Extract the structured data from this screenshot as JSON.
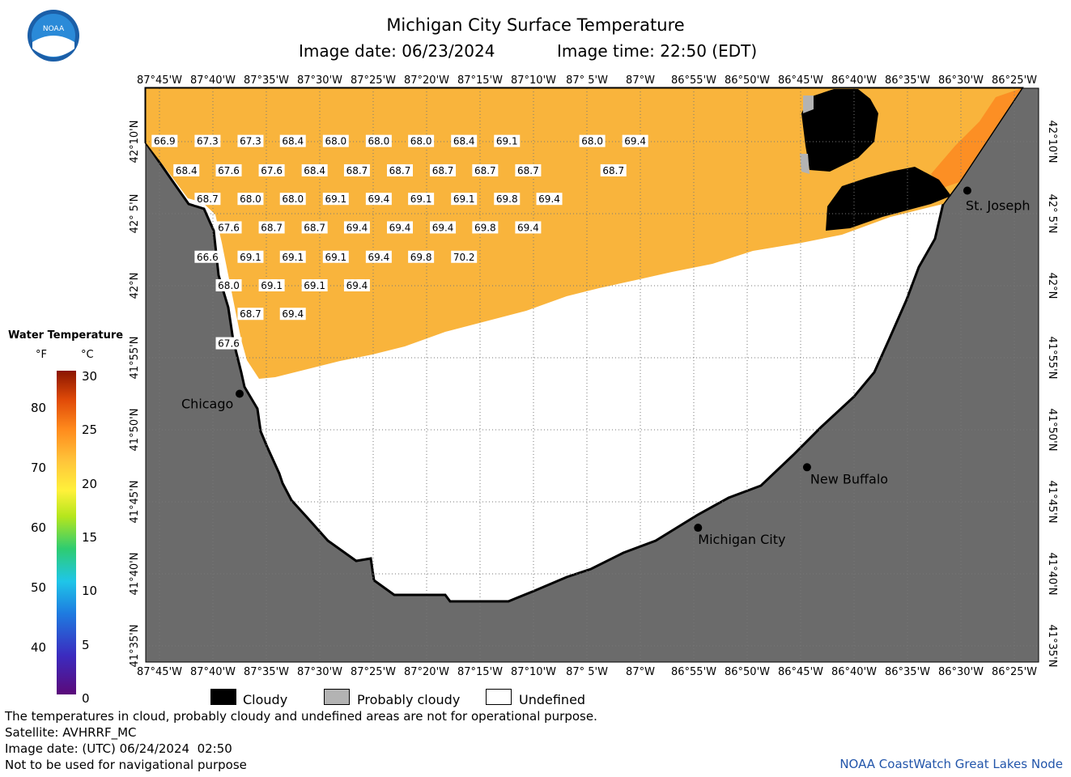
{
  "header": {
    "title": "Michigan City Surface Temperature",
    "image_date": "Image date: 06/23/2024",
    "image_time": "Image time: 22:50 (EDT)",
    "logo_text": "NOAA"
  },
  "map": {
    "lon_labels": [
      "87°45'W",
      "87°40'W",
      "87°35'W",
      "87°30'W",
      "87°25'W",
      "87°20'W",
      "87°15'W",
      "87°10'W",
      "87° 5'W",
      "87°W",
      "86°55'W",
      "86°50'W",
      "86°45'W",
      "86°40'W",
      "86°35'W",
      "86°30'W",
      "86°25'W"
    ],
    "lat_labels": [
      "42°10'N",
      "42° 5'N",
      "42°N",
      "41°55'N",
      "41°50'N",
      "41°45'N",
      "41°40'N",
      "41°35'N"
    ],
    "cities": [
      {
        "name": "Chicago",
        "lon": -87.625,
        "lat": 41.875
      },
      {
        "name": "St. Joseph",
        "lon": -86.49,
        "lat": 42.11
      },
      {
        "name": "New Buffalo",
        "lon": -86.74,
        "lat": 41.79
      },
      {
        "name": "Michigan City",
        "lon": -86.91,
        "lat": 41.72
      }
    ],
    "temps": [
      {
        "lon": -87.742,
        "lat": 42.167,
        "v": "66.9"
      },
      {
        "lon": -87.675,
        "lat": 42.167,
        "v": "67.3"
      },
      {
        "lon": -87.608,
        "lat": 42.167,
        "v": "67.3"
      },
      {
        "lon": -87.542,
        "lat": 42.167,
        "v": "68.4"
      },
      {
        "lon": -87.475,
        "lat": 42.167,
        "v": "68.0"
      },
      {
        "lon": -87.408,
        "lat": 42.167,
        "v": "68.0"
      },
      {
        "lon": -87.342,
        "lat": 42.167,
        "v": "68.0"
      },
      {
        "lon": -87.275,
        "lat": 42.167,
        "v": "68.4"
      },
      {
        "lon": -87.208,
        "lat": 42.167,
        "v": "69.1"
      },
      {
        "lon": -87.075,
        "lat": 42.167,
        "v": "68.0"
      },
      {
        "lon": -87.008,
        "lat": 42.167,
        "v": "69.4"
      },
      {
        "lon": -87.708,
        "lat": 42.133,
        "v": "68.4"
      },
      {
        "lon": -87.642,
        "lat": 42.133,
        "v": "67.6"
      },
      {
        "lon": -87.575,
        "lat": 42.133,
        "v": "67.6"
      },
      {
        "lon": -87.508,
        "lat": 42.133,
        "v": "68.4"
      },
      {
        "lon": -87.442,
        "lat": 42.133,
        "v": "68.7"
      },
      {
        "lon": -87.375,
        "lat": 42.133,
        "v": "68.7"
      },
      {
        "lon": -87.308,
        "lat": 42.133,
        "v": "68.7"
      },
      {
        "lon": -87.242,
        "lat": 42.133,
        "v": "68.7"
      },
      {
        "lon": -87.175,
        "lat": 42.133,
        "v": "68.7"
      },
      {
        "lon": -87.042,
        "lat": 42.133,
        "v": "68.7"
      },
      {
        "lon": -87.675,
        "lat": 42.1,
        "v": "68.7"
      },
      {
        "lon": -87.608,
        "lat": 42.1,
        "v": "68.0"
      },
      {
        "lon": -87.542,
        "lat": 42.1,
        "v": "68.0"
      },
      {
        "lon": -87.475,
        "lat": 42.1,
        "v": "69.1"
      },
      {
        "lon": -87.408,
        "lat": 42.1,
        "v": "69.4"
      },
      {
        "lon": -87.342,
        "lat": 42.1,
        "v": "69.1"
      },
      {
        "lon": -87.275,
        "lat": 42.1,
        "v": "69.1"
      },
      {
        "lon": -87.208,
        "lat": 42.1,
        "v": "69.8"
      },
      {
        "lon": -87.142,
        "lat": 42.1,
        "v": "69.4"
      },
      {
        "lon": -87.642,
        "lat": 42.067,
        "v": "67.6"
      },
      {
        "lon": -87.575,
        "lat": 42.067,
        "v": "68.7"
      },
      {
        "lon": -87.508,
        "lat": 42.067,
        "v": "68.7"
      },
      {
        "lon": -87.442,
        "lat": 42.067,
        "v": "69.4"
      },
      {
        "lon": -87.375,
        "lat": 42.067,
        "v": "69.4"
      },
      {
        "lon": -87.308,
        "lat": 42.067,
        "v": "69.4"
      },
      {
        "lon": -87.242,
        "lat": 42.067,
        "v": "69.8"
      },
      {
        "lon": -87.175,
        "lat": 42.067,
        "v": "69.4"
      },
      {
        "lon": -87.675,
        "lat": 42.033,
        "v": "66.6"
      },
      {
        "lon": -87.608,
        "lat": 42.033,
        "v": "69.1"
      },
      {
        "lon": -87.542,
        "lat": 42.033,
        "v": "69.1"
      },
      {
        "lon": -87.475,
        "lat": 42.033,
        "v": "69.1"
      },
      {
        "lon": -87.408,
        "lat": 42.033,
        "v": "69.4"
      },
      {
        "lon": -87.342,
        "lat": 42.033,
        "v": "69.8"
      },
      {
        "lon": -87.275,
        "lat": 42.033,
        "v": "70.2"
      },
      {
        "lon": -87.642,
        "lat": 42.0,
        "v": "68.0"
      },
      {
        "lon": -87.575,
        "lat": 42.0,
        "v": "69.1"
      },
      {
        "lon": -87.508,
        "lat": 42.0,
        "v": "69.1"
      },
      {
        "lon": -87.442,
        "lat": 42.0,
        "v": "69.4"
      },
      {
        "lon": -87.608,
        "lat": 41.967,
        "v": "68.7"
      },
      {
        "lon": -87.542,
        "lat": 41.967,
        "v": "69.4"
      },
      {
        "lon": -87.642,
        "lat": 41.933,
        "v": "67.6"
      }
    ]
  },
  "legend": {
    "title": "Water Temperature",
    "unit_f": "°F",
    "unit_c": "°C",
    "f_ticks": [
      "80",
      "70",
      "60",
      "50",
      "40"
    ],
    "c_ticks": [
      "30",
      "25",
      "20",
      "15",
      "10",
      "5",
      "0"
    ],
    "cloudy": "Cloudy",
    "probably_cloudy": "Probably cloudy",
    "undefined": "Undefined"
  },
  "footer": {
    "line1": "The temperatures in cloud, probably cloudy and undefined areas are not for operational purpose.",
    "line2": "Satellite: AVHRRF_MC",
    "line3": "Image date: (UTC) 06/24/2024  02:50",
    "line4": "Not to be used for navigational purpose",
    "credit": "NOAA CoastWatch Great Lakes Node"
  },
  "colors": {
    "land": "#6b6b6b",
    "water_warm": "#f9b43c",
    "cloud": "#000000",
    "probably_cloudy": "#b3b3b3"
  }
}
